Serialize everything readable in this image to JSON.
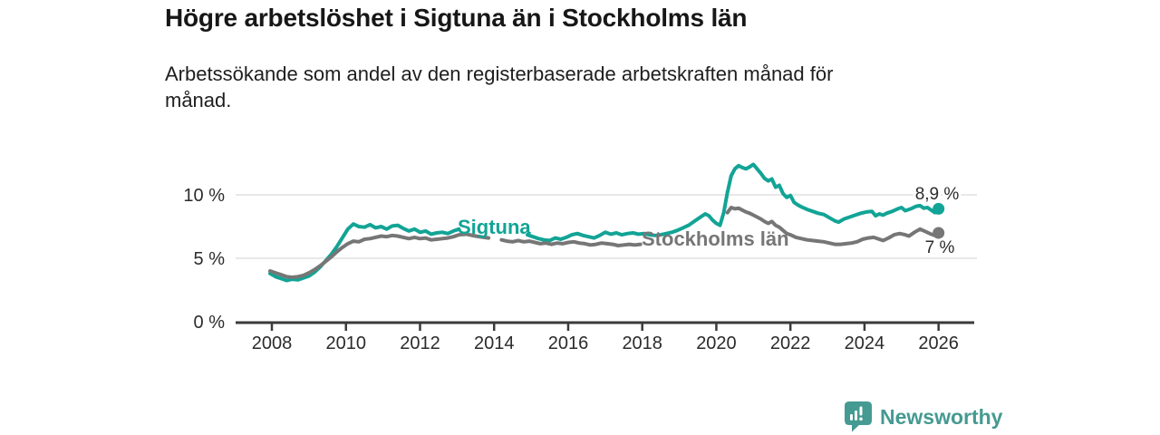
{
  "header": {
    "title": "Högre arbetslöshet i Sigtuna än i Stockholms län",
    "subtitle": "Arbetssökande som andel av den registerbaserade arbetskraften månad för månad.",
    "subtitle_lines": [
      "Arbetssökande som andel av den registerbaserade arbetskraften månad för",
      "månad."
    ]
  },
  "footer": {
    "brand": "Newsworthy",
    "brand_color": "#459a91"
  },
  "chart_data": {
    "type": "line",
    "title": "Högre arbetslöshet i Sigtuna än i Stockholms län",
    "subtitle": "Arbetssökande som andel av den registerbaserade arbetskraften månad för månad.",
    "unit": "%",
    "grid": "horizontal",
    "legend": "inline-labels",
    "xlim": [
      2007,
      2027
    ],
    "ylim": [
      0,
      13
    ],
    "x_ticks": [
      2008,
      2010,
      2012,
      2014,
      2016,
      2018,
      2020,
      2022,
      2024,
      2026
    ],
    "x_tick_labels": [
      "2008",
      "2010",
      "2012",
      "2014",
      "2016",
      "2018",
      "2020",
      "2022",
      "2024",
      "2026"
    ],
    "y_ticks": [
      0,
      5,
      10
    ],
    "y_tick_labels": [
      "0 %",
      "5 %",
      "10 %"
    ],
    "style": {
      "axis_color": "#3a3a3a",
      "grid_color": "#d9d9d9",
      "tick_label_color": "#2b2b2b",
      "value_label_color": "#2b2b2b"
    },
    "series": [
      {
        "name": "Sigtuna",
        "color": "#12a496",
        "end_value": 8.9,
        "end_label": "8,9 %",
        "points": [
          [
            2007.95,
            3.8
          ],
          [
            2008.1,
            3.55
          ],
          [
            2008.25,
            3.4
          ],
          [
            2008.4,
            3.25
          ],
          [
            2008.55,
            3.35
          ],
          [
            2008.7,
            3.3
          ],
          [
            2008.85,
            3.45
          ],
          [
            2009.0,
            3.6
          ],
          [
            2009.15,
            3.9
          ],
          [
            2009.3,
            4.3
          ],
          [
            2009.45,
            4.8
          ],
          [
            2009.6,
            5.3
          ],
          [
            2009.75,
            5.9
          ],
          [
            2009.9,
            6.6
          ],
          [
            2010.05,
            7.3
          ],
          [
            2010.2,
            7.7
          ],
          [
            2010.35,
            7.5
          ],
          [
            2010.5,
            7.45
          ],
          [
            2010.65,
            7.65
          ],
          [
            2010.8,
            7.4
          ],
          [
            2010.95,
            7.5
          ],
          [
            2011.1,
            7.3
          ],
          [
            2011.25,
            7.55
          ],
          [
            2011.4,
            7.6
          ],
          [
            2011.55,
            7.35
          ],
          [
            2011.7,
            7.15
          ],
          [
            2011.85,
            7.3
          ],
          [
            2012.0,
            7.05
          ],
          [
            2012.15,
            7.15
          ],
          [
            2012.3,
            6.9
          ],
          [
            2012.45,
            7.0
          ],
          [
            2012.6,
            7.05
          ],
          [
            2012.75,
            6.95
          ],
          [
            2012.9,
            7.15
          ],
          [
            2013.05,
            7.3
          ],
          [
            2013.3,
            7.2
          ],
          [
            2013.6,
            6.95
          ],
          [
            2013.9,
            6.8
          ],
          [
            2014.2,
            6.75
          ],
          [
            2014.5,
            6.6
          ],
          [
            2014.7,
            6.7
          ],
          [
            2014.9,
            6.85
          ],
          [
            2015.05,
            6.7
          ],
          [
            2015.2,
            6.55
          ],
          [
            2015.35,
            6.45
          ],
          [
            2015.5,
            6.4
          ],
          [
            2015.65,
            6.6
          ],
          [
            2015.8,
            6.5
          ],
          [
            2015.95,
            6.65
          ],
          [
            2016.1,
            6.85
          ],
          [
            2016.25,
            6.95
          ],
          [
            2016.4,
            6.8
          ],
          [
            2016.55,
            6.7
          ],
          [
            2016.7,
            6.6
          ],
          [
            2016.85,
            6.8
          ],
          [
            2017.0,
            7.05
          ],
          [
            2017.15,
            6.9
          ],
          [
            2017.3,
            7.0
          ],
          [
            2017.45,
            6.85
          ],
          [
            2017.6,
            6.95
          ],
          [
            2017.75,
            7.0
          ],
          [
            2017.9,
            6.9
          ],
          [
            2018.05,
            6.95
          ],
          [
            2018.2,
            6.85
          ],
          [
            2018.35,
            6.8
          ],
          [
            2018.5,
            6.85
          ],
          [
            2018.65,
            6.95
          ],
          [
            2018.8,
            7.05
          ],
          [
            2018.95,
            7.2
          ],
          [
            2019.1,
            7.4
          ],
          [
            2019.25,
            7.6
          ],
          [
            2019.4,
            7.9
          ],
          [
            2019.55,
            8.2
          ],
          [
            2019.7,
            8.5
          ],
          [
            2019.8,
            8.35
          ],
          [
            2019.9,
            8.0
          ],
          [
            2020.0,
            7.75
          ],
          [
            2020.1,
            7.6
          ],
          [
            2020.2,
            8.6
          ],
          [
            2020.3,
            10.2
          ],
          [
            2020.4,
            11.5
          ],
          [
            2020.5,
            12.05
          ],
          [
            2020.6,
            12.3
          ],
          [
            2020.7,
            12.15
          ],
          [
            2020.8,
            12.05
          ],
          [
            2020.9,
            12.2
          ],
          [
            2021.0,
            12.4
          ],
          [
            2021.1,
            12.05
          ],
          [
            2021.2,
            11.7
          ],
          [
            2021.3,
            11.3
          ],
          [
            2021.4,
            11.1
          ],
          [
            2021.5,
            11.25
          ],
          [
            2021.6,
            10.6
          ],
          [
            2021.7,
            10.75
          ],
          [
            2021.8,
            10.1
          ],
          [
            2021.9,
            9.8
          ],
          [
            2022.0,
            9.95
          ],
          [
            2022.1,
            9.4
          ],
          [
            2022.2,
            9.2
          ],
          [
            2022.3,
            9.05
          ],
          [
            2022.45,
            8.85
          ],
          [
            2022.6,
            8.7
          ],
          [
            2022.75,
            8.55
          ],
          [
            2022.9,
            8.45
          ],
          [
            2023.05,
            8.2
          ],
          [
            2023.2,
            7.95
          ],
          [
            2023.3,
            7.85
          ],
          [
            2023.45,
            8.1
          ],
          [
            2023.6,
            8.25
          ],
          [
            2023.75,
            8.4
          ],
          [
            2023.9,
            8.55
          ],
          [
            2024.05,
            8.65
          ],
          [
            2024.2,
            8.7
          ],
          [
            2024.3,
            8.35
          ],
          [
            2024.4,
            8.5
          ],
          [
            2024.5,
            8.4
          ],
          [
            2024.6,
            8.55
          ],
          [
            2024.75,
            8.7
          ],
          [
            2024.9,
            8.9
          ],
          [
            2025.0,
            9.0
          ],
          [
            2025.1,
            8.75
          ],
          [
            2025.25,
            8.9
          ],
          [
            2025.4,
            9.1
          ],
          [
            2025.5,
            9.15
          ],
          [
            2025.6,
            8.95
          ],
          [
            2025.7,
            9.0
          ],
          [
            2025.8,
            8.8
          ],
          [
            2025.9,
            8.6
          ],
          [
            2026.0,
            8.9
          ]
        ]
      },
      {
        "name": "Stockholms län",
        "color": "#767676",
        "end_value": 7.0,
        "end_label": "7 %",
        "points": [
          [
            2007.95,
            4.0
          ],
          [
            2008.1,
            3.85
          ],
          [
            2008.25,
            3.7
          ],
          [
            2008.4,
            3.55
          ],
          [
            2008.55,
            3.5
          ],
          [
            2008.7,
            3.55
          ],
          [
            2008.85,
            3.65
          ],
          [
            2009.0,
            3.85
          ],
          [
            2009.15,
            4.1
          ],
          [
            2009.3,
            4.4
          ],
          [
            2009.45,
            4.75
          ],
          [
            2009.6,
            5.1
          ],
          [
            2009.75,
            5.5
          ],
          [
            2009.9,
            5.85
          ],
          [
            2010.05,
            6.15
          ],
          [
            2010.2,
            6.35
          ],
          [
            2010.35,
            6.3
          ],
          [
            2010.5,
            6.5
          ],
          [
            2010.65,
            6.55
          ],
          [
            2010.8,
            6.65
          ],
          [
            2010.95,
            6.75
          ],
          [
            2011.1,
            6.7
          ],
          [
            2011.25,
            6.8
          ],
          [
            2011.4,
            6.75
          ],
          [
            2011.55,
            6.65
          ],
          [
            2011.7,
            6.55
          ],
          [
            2011.85,
            6.65
          ],
          [
            2012.0,
            6.55
          ],
          [
            2012.15,
            6.6
          ],
          [
            2012.3,
            6.45
          ],
          [
            2012.45,
            6.5
          ],
          [
            2012.6,
            6.55
          ],
          [
            2012.75,
            6.6
          ],
          [
            2012.9,
            6.7
          ],
          [
            2013.05,
            6.85
          ],
          [
            2013.25,
            6.9
          ],
          [
            2013.5,
            6.75
          ],
          [
            2013.85,
            6.6
          ],
          [
            2014.0,
            6.5
          ],
          [
            2014.2,
            6.45
          ],
          [
            2014.35,
            6.35
          ],
          [
            2014.5,
            6.3
          ],
          [
            2014.65,
            6.4
          ],
          [
            2014.8,
            6.3
          ],
          [
            2014.95,
            6.35
          ],
          [
            2015.1,
            6.25
          ],
          [
            2015.25,
            6.15
          ],
          [
            2015.4,
            6.2
          ],
          [
            2015.55,
            6.1
          ],
          [
            2015.7,
            6.2
          ],
          [
            2015.85,
            6.15
          ],
          [
            2016.0,
            6.25
          ],
          [
            2016.15,
            6.3
          ],
          [
            2016.3,
            6.2
          ],
          [
            2016.45,
            6.15
          ],
          [
            2016.6,
            6.05
          ],
          [
            2016.75,
            6.1
          ],
          [
            2016.9,
            6.2
          ],
          [
            2017.05,
            6.15
          ],
          [
            2017.2,
            6.1
          ],
          [
            2017.35,
            6.0
          ],
          [
            2017.5,
            6.05
          ],
          [
            2017.65,
            6.1
          ],
          [
            2017.8,
            6.05
          ],
          [
            2017.95,
            6.1
          ],
          [
            2018.3,
            6.05
          ],
          [
            2018.6,
            6.0
          ],
          [
            2018.9,
            6.1
          ],
          [
            2019.2,
            6.2
          ],
          [
            2019.5,
            6.3
          ],
          [
            2019.8,
            6.5
          ],
          [
            2020.0,
            6.7
          ],
          [
            2020.15,
            7.4
          ],
          [
            2020.3,
            8.6
          ],
          [
            2020.4,
            9.0
          ],
          [
            2020.5,
            8.9
          ],
          [
            2020.6,
            8.95
          ],
          [
            2020.7,
            8.8
          ],
          [
            2020.8,
            8.65
          ],
          [
            2020.9,
            8.55
          ],
          [
            2021.0,
            8.4
          ],
          [
            2021.1,
            8.25
          ],
          [
            2021.2,
            8.1
          ],
          [
            2021.3,
            7.9
          ],
          [
            2021.4,
            7.75
          ],
          [
            2021.5,
            7.9
          ],
          [
            2021.6,
            7.6
          ],
          [
            2021.7,
            7.45
          ],
          [
            2021.8,
            7.2
          ],
          [
            2021.9,
            6.95
          ],
          [
            2022.0,
            6.85
          ],
          [
            2022.15,
            6.65
          ],
          [
            2022.3,
            6.55
          ],
          [
            2022.45,
            6.45
          ],
          [
            2022.6,
            6.4
          ],
          [
            2022.75,
            6.35
          ],
          [
            2022.9,
            6.3
          ],
          [
            2023.05,
            6.2
          ],
          [
            2023.2,
            6.1
          ],
          [
            2023.35,
            6.1
          ],
          [
            2023.5,
            6.15
          ],
          [
            2023.65,
            6.2
          ],
          [
            2023.8,
            6.3
          ],
          [
            2023.95,
            6.5
          ],
          [
            2024.1,
            6.6
          ],
          [
            2024.25,
            6.65
          ],
          [
            2024.4,
            6.5
          ],
          [
            2024.5,
            6.4
          ],
          [
            2024.65,
            6.6
          ],
          [
            2024.8,
            6.85
          ],
          [
            2024.95,
            6.95
          ],
          [
            2025.1,
            6.85
          ],
          [
            2025.2,
            6.75
          ],
          [
            2025.35,
            7.05
          ],
          [
            2025.5,
            7.3
          ],
          [
            2025.65,
            7.1
          ],
          [
            2025.8,
            6.9
          ],
          [
            2025.9,
            6.8
          ],
          [
            2026.0,
            7.0
          ]
        ]
      }
    ]
  }
}
